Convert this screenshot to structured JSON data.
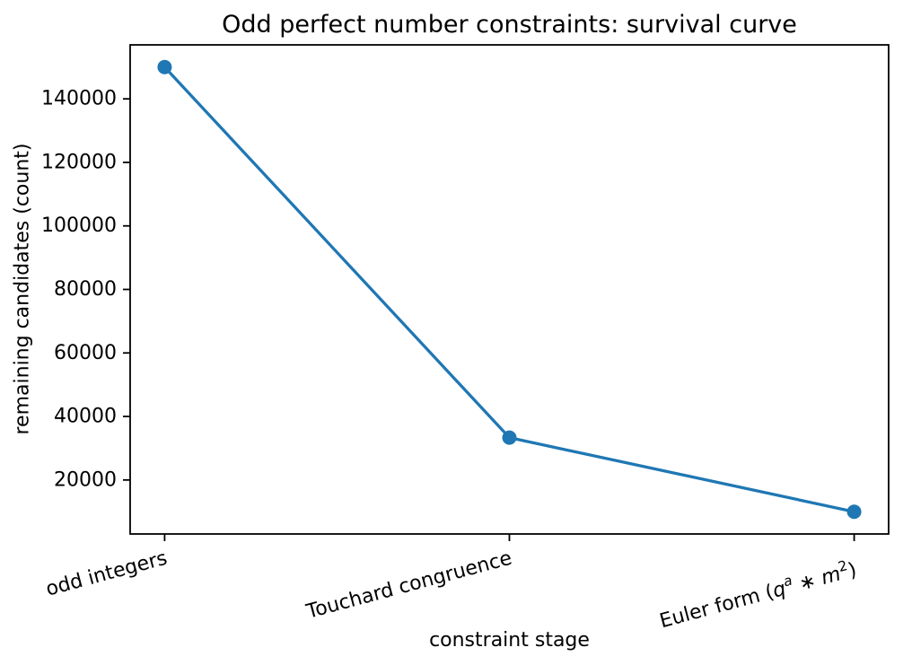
{
  "title": "Odd perfect number constraints: survival curve",
  "chart_data": {
    "type": "line",
    "title": "Odd perfect number constraints: survival curve",
    "xlabel": "constraint stage",
    "ylabel": "remaining candidates (count)",
    "categories": [
      "odd integers",
      "Touchard congruence",
      "Euler form (qᵃ ∗ m²)"
    ],
    "categories_rich": [
      [
        {
          "t": "odd integers"
        }
      ],
      [
        {
          "t": "Touchard congruence"
        }
      ],
      [
        {
          "t": "Euler form ("
        },
        {
          "t": "q",
          "italic": true
        },
        {
          "t": "a",
          "italic": true,
          "sup": true
        },
        {
          "t": " ∗ ",
          "italic": false
        },
        {
          "t": "m",
          "italic": true
        },
        {
          "t": "2",
          "sup": true
        },
        {
          "t": ")"
        }
      ]
    ],
    "values": [
      150000,
      33333,
      10000
    ],
    "yticks": [
      20000,
      40000,
      60000,
      80000,
      100000,
      120000,
      140000
    ],
    "ylim": [
      3000,
      157000
    ],
    "xlim": [
      -0.1,
      2.1
    ],
    "tick_label_rotation_deg": 15,
    "grid": false,
    "legend": null,
    "line_color": "#1f77b4",
    "marker": "circle",
    "text_color": "#000000",
    "background_color": "#ffffff"
  }
}
